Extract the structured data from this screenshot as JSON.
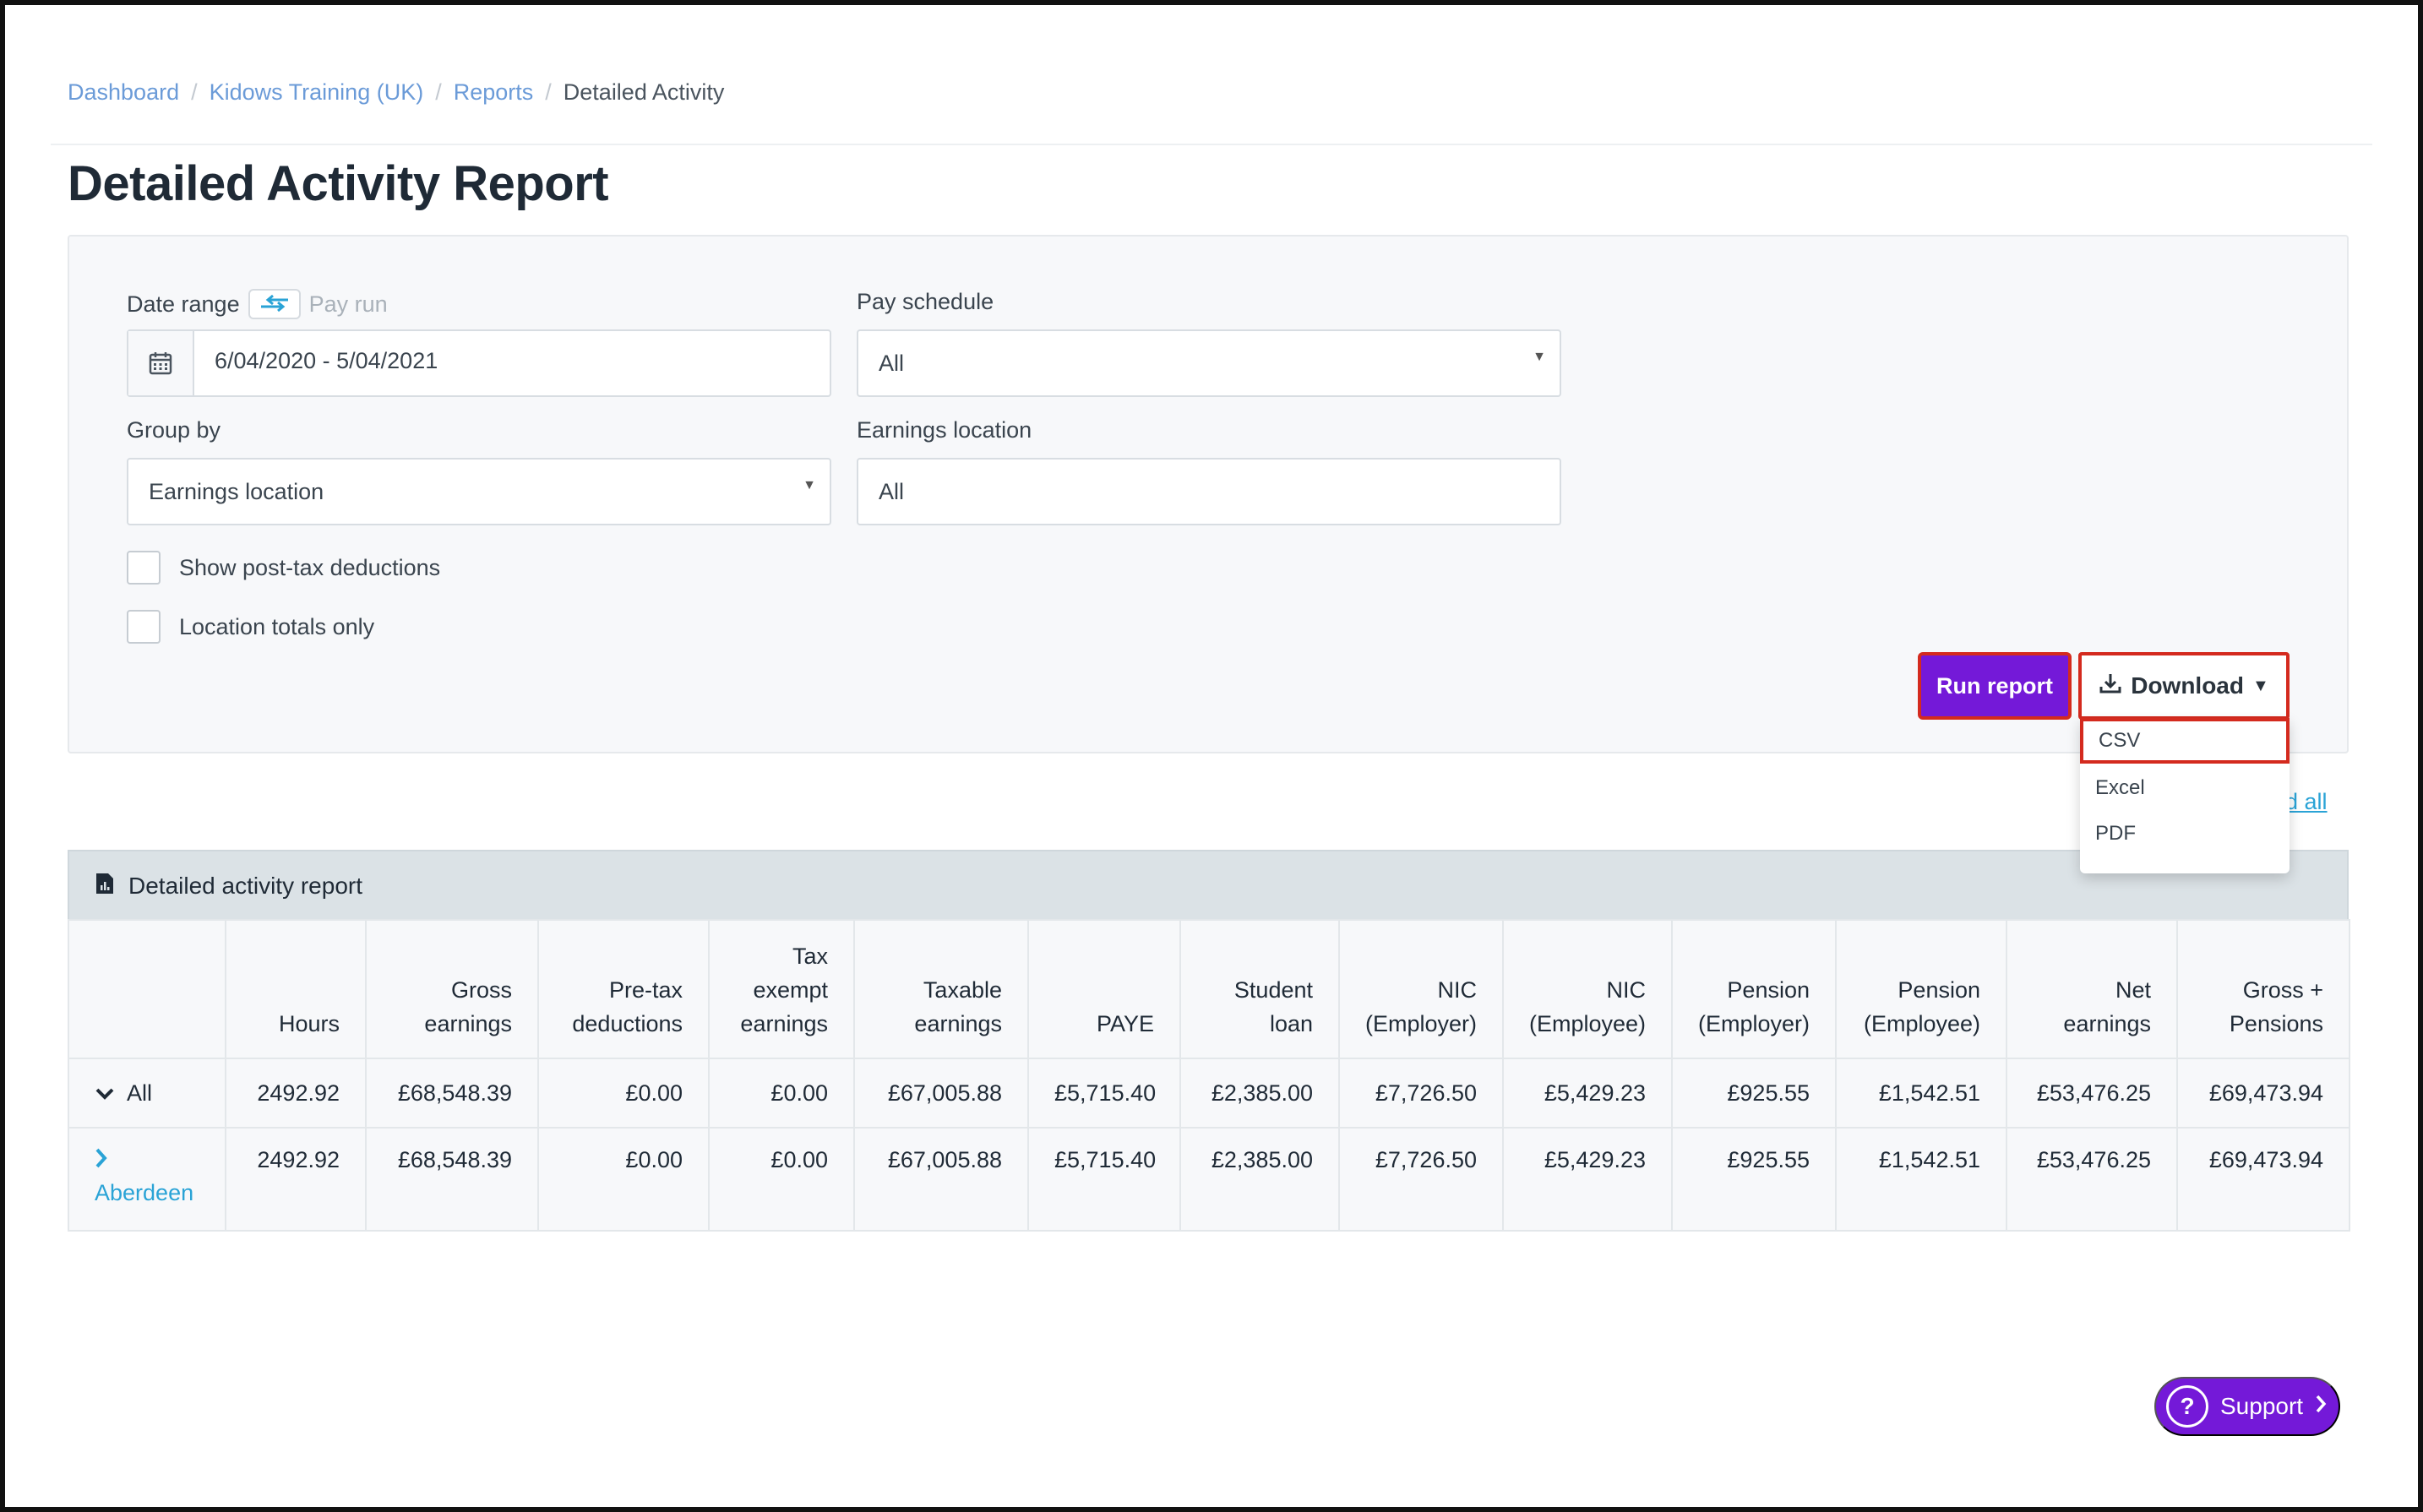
{
  "breadcrumb": {
    "items": [
      "Dashboard",
      "Kidows Training (UK)",
      "Reports"
    ],
    "current": "Detailed Activity"
  },
  "page": {
    "title": "Detailed Activity Report"
  },
  "filters": {
    "date_range_label": "Date range",
    "pay_run_option": "Pay run",
    "date_range_value": "6/04/2020 - 5/04/2021",
    "pay_schedule_label": "Pay schedule",
    "pay_schedule_value": "All",
    "group_by_label": "Group by",
    "group_by_value": "Earnings location",
    "earnings_location_label": "Earnings location",
    "earnings_location_value": "All",
    "show_post_tax_label": "Show post-tax deductions",
    "location_totals_label": "Location totals only"
  },
  "actions": {
    "run_report": "Run report",
    "download": "Download",
    "download_options": [
      "CSV",
      "Excel",
      "PDF"
    ],
    "expand_all": "nd all"
  },
  "report": {
    "header": "Detailed activity report",
    "columns": [
      [
        "Hours"
      ],
      [
        "Gross",
        "earnings"
      ],
      [
        "Pre-tax",
        "deductions"
      ],
      [
        "Tax",
        "exempt",
        "earnings"
      ],
      [
        "Taxable",
        "earnings"
      ],
      [
        "PAYE"
      ],
      [
        "Student",
        "loan"
      ],
      [
        "NIC",
        "(Employer)"
      ],
      [
        "NIC",
        "(Employee)"
      ],
      [
        "Pension",
        "(Employer)"
      ],
      [
        "Pension",
        "(Employee)"
      ],
      [
        "Net",
        "earnings"
      ],
      [
        "Gross +",
        "Pensions"
      ]
    ],
    "rows": [
      {
        "label": "All",
        "values": [
          "2492.92",
          "£68,548.39",
          "£0.00",
          "£0.00",
          "£67,005.88",
          "£5,715.40",
          "£2,385.00",
          "£7,726.50",
          "£5,429.23",
          "£925.55",
          "£1,542.51",
          "£53,476.25",
          "£69,473.94"
        ]
      },
      {
        "label": "Aberdeen",
        "values": [
          "2492.92",
          "£68,548.39",
          "£0.00",
          "£0.00",
          "£67,005.88",
          "£5,715.40",
          "£2,385.00",
          "£7,726.50",
          "£5,429.23",
          "£925.55",
          "£1,542.51",
          "£53,476.25",
          "£69,473.94"
        ]
      }
    ]
  },
  "support": {
    "label": "Support"
  },
  "colors": {
    "accent": "#7419d8",
    "link": "#2aa3d6",
    "highlight": "#d42a1e"
  }
}
